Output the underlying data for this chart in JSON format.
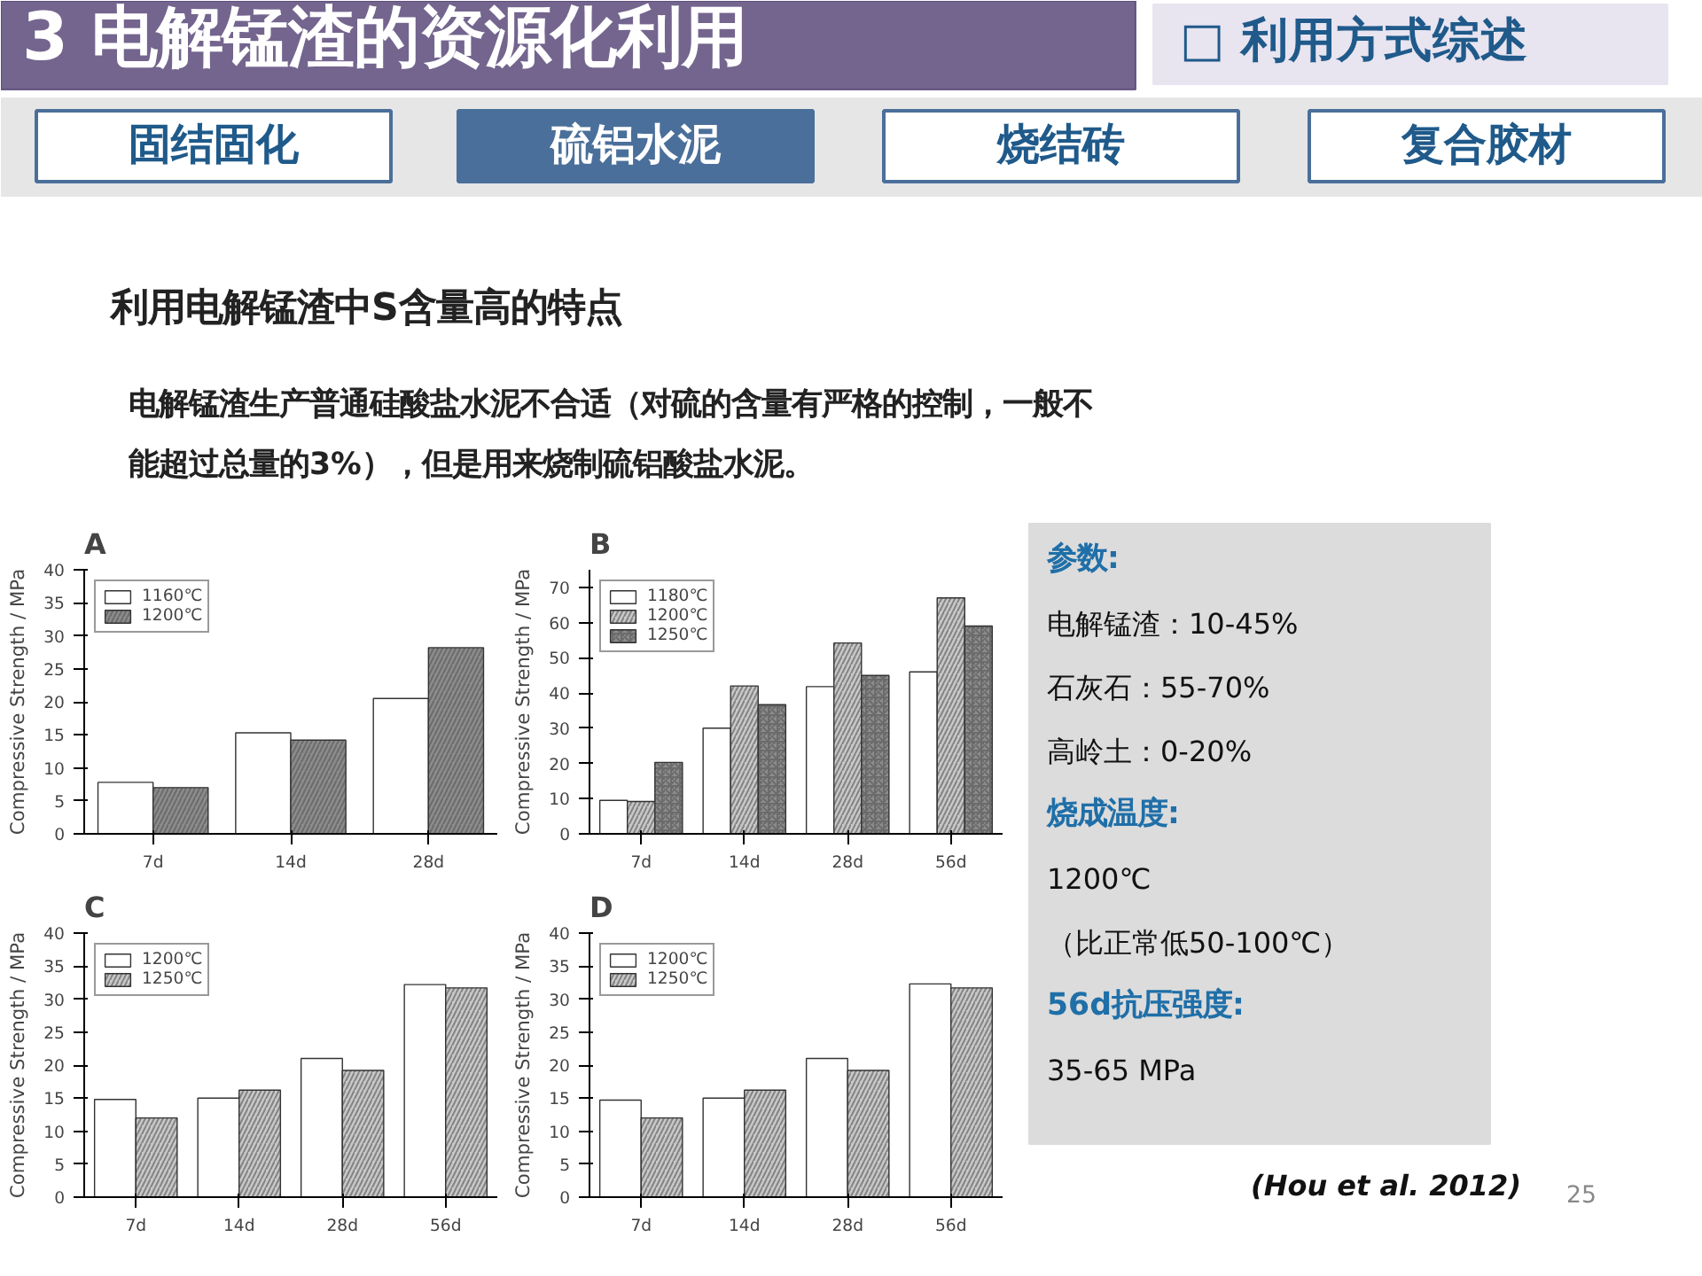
{
  "chart_data": [
    {
      "type": "other",
      "title": "3 电解锰渣的资源化利用",
      "annotations": [
        "□ 利用方式综述",
        "固结固化",
        "硫铝水泥",
        "烧结砖",
        "复合胶材",
        "利用电解锰渣中S含量高的特点",
        "电解锰渣生产普通硅酸盐水泥不合适（对硫的含量有严格的控制，一般不",
        "能超过总量的3%），但是用来烧制硫铝酸盐水泥。"
      ]
    },
    {
      "type": "bar",
      "title": "A",
      "ylabel": "Compressive Strength / MPa",
      "categories": [
        "7d",
        "14d",
        "28d"
      ],
      "series": [
        {
          "name": "1160℃",
          "color": "#ffffff",
          "values": [
            7.8,
            15.3,
            20.5
          ]
        },
        {
          "name": "1200℃",
          "color": "#8c8c8c",
          "values": [
            7.0,
            14.2,
            28.2
          ]
        }
      ],
      "ylim": [
        0,
        40
      ],
      "yticks": [
        0,
        5,
        10,
        15,
        20,
        25,
        30,
        35,
        40
      ],
      "legend": "top left",
      "grid": false
    },
    {
      "type": "bar",
      "title": "B",
      "ylabel": "Compressive Strength / MPa",
      "categories": [
        "7d",
        "14d",
        "28d",
        "56d"
      ],
      "series": [
        {
          "name": "1180℃",
          "color": "#ffffff",
          "values": [
            9.5,
            30,
            41.8,
            46
          ]
        },
        {
          "name": "1200℃",
          "color": "#c8c8c8",
          "values": [
            9.2,
            42,
            54.2,
            67
          ]
        },
        {
          "name": "1250℃",
          "color": "#8c8c8c",
          "values": [
            20.3,
            36.7,
            45,
            59
          ]
        }
      ],
      "ylim": [
        0,
        75
      ],
      "yticks": [
        0,
        10,
        20,
        30,
        40,
        50,
        60,
        70
      ],
      "legend": "top left",
      "grid": false
    },
    {
      "type": "bar",
      "title": "C",
      "ylabel": "Compressive Strength / MPa",
      "categories": [
        "7d",
        "14d",
        "28d",
        "56d"
      ],
      "series": [
        {
          "name": "1200℃",
          "color": "#ffffff",
          "values": [
            14.8,
            15,
            21,
            32.2
          ]
        },
        {
          "name": "1250℃",
          "color": "#c8c8c8",
          "values": [
            12,
            16.2,
            19.2,
            31.7
          ]
        }
      ],
      "ylim": [
        0,
        40
      ],
      "yticks": [
        0,
        5,
        10,
        15,
        20,
        25,
        30,
        35,
        40
      ],
      "legend": "top left",
      "grid": false
    },
    {
      "type": "bar",
      "title": "D",
      "ylabel": "Compressive Strength / MPa",
      "categories": [
        "7d",
        "14d",
        "28d",
        "56d"
      ],
      "series": [
        {
          "name": "1200℃",
          "color": "#ffffff",
          "values": [
            14.7,
            15,
            21,
            32.3
          ]
        },
        {
          "name": "1250℃",
          "color": "#c8c8c8",
          "values": [
            12,
            16.2,
            19.2,
            31.7
          ]
        }
      ],
      "ylim": [
        0,
        40
      ],
      "yticks": [
        0,
        5,
        10,
        15,
        20,
        25,
        30,
        35,
        40
      ],
      "legend": "top left",
      "grid": false
    },
    {
      "type": "other",
      "annotations": [
        "参数:",
        "电解锰渣：10-45%",
        "石灰石：55-70%",
        "高岭土：0-20%",
        "烧成温度:",
        "1200℃",
        "（比正常低50-100℃）",
        "56d抗压强度:",
        "35-65 MPa",
        "(Hou et al. 2012)",
        "25"
      ]
    }
  ]
}
